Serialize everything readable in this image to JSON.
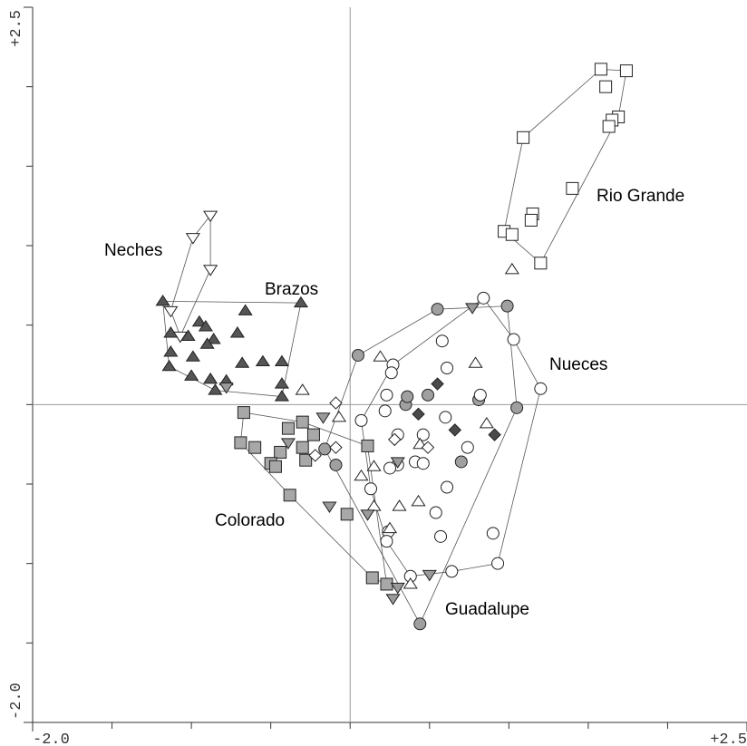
{
  "chart_data": {
    "type": "scatter",
    "xlim": [
      -2.0,
      2.5
    ],
    "ylim": [
      -2.0,
      2.5
    ],
    "xticks": [
      {
        "value": -2.0,
        "label": "-2.0"
      },
      {
        "value": 2.5,
        "label": "+2.5"
      }
    ],
    "yticks": [
      {
        "value": -2.0,
        "label": "-2.0"
      },
      {
        "value": 2.5,
        "label": "+2.5"
      }
    ],
    "xminorticks": [
      -1.5,
      -1.0,
      -0.5,
      0,
      0.5,
      1.0,
      1.5,
      2.0
    ],
    "yminorticks": [
      -1.5,
      -1.0,
      -0.5,
      0,
      0.5,
      1.0,
      1.5,
      2.0
    ],
    "zero_lines": true,
    "series": [
      {
        "name": "Rio Grande",
        "marker": "square",
        "color": "#ffffff",
        "hull": true,
        "x": [
          1.58,
          1.74,
          1.61,
          1.69,
          1.65,
          1.63,
          1.09,
          1.4,
          1.15,
          1.14,
          0.97,
          1.02,
          1.2
        ],
        "values": [
          2.11,
          2.1,
          2.0,
          1.81,
          1.79,
          1.75,
          1.68,
          1.36,
          1.2,
          1.16,
          1.09,
          1.07,
          0.89
        ]
      },
      {
        "name": "Neches",
        "marker": "triangle-down",
        "color": "#ffffff",
        "hull": true,
        "x": [
          -0.88,
          -0.99,
          -0.88,
          -1.13,
          -1.07
        ],
        "values": [
          1.19,
          1.05,
          0.85,
          0.59,
          0.43
        ]
      },
      {
        "name": "Brazos",
        "marker": "triangle-up",
        "color": "#555555",
        "hull": true,
        "x": [
          -1.18,
          -0.31,
          -1.13,
          -0.95,
          -0.91,
          -1.02,
          -0.86,
          -0.9,
          -0.66,
          -0.71,
          -1.13,
          -0.99,
          -1.14,
          -0.55,
          -0.43,
          -0.68,
          -0.88,
          -0.78,
          -1.0,
          -0.85,
          -0.43,
          -0.43
        ],
        "values": [
          0.65,
          0.64,
          0.45,
          0.52,
          0.49,
          0.43,
          0.41,
          0.38,
          0.59,
          0.45,
          0.33,
          0.3,
          0.24,
          0.27,
          0.27,
          0.26,
          0.16,
          0.15,
          0.18,
          0.09,
          0.13,
          0.05
        ]
      },
      {
        "name": "Colorado",
        "marker": "square",
        "color": "#a8a8a8",
        "hull": true,
        "x": [
          -0.67,
          -0.39,
          -0.3,
          -0.23,
          -0.69,
          -0.6,
          -0.44,
          -0.3,
          -0.5,
          -0.47,
          -0.28,
          -0.38,
          -0.02,
          0.11,
          0.14,
          0.23
        ],
        "values": [
          -0.05,
          -0.15,
          -0.11,
          -0.19,
          -0.24,
          -0.27,
          -0.3,
          -0.27,
          -0.37,
          -0.39,
          -0.35,
          -0.57,
          -0.69,
          -0.26,
          -1.09,
          -1.13
        ]
      },
      {
        "name": "Guadalupe",
        "marker": "circle",
        "color": "#a0a0a0",
        "hull": true,
        "x": [
          0.55,
          0.99,
          0.05,
          0.35,
          0.36,
          0.49,
          0.81,
          1.05,
          -0.16,
          -0.09,
          0.7,
          0.44
        ],
        "values": [
          0.6,
          0.62,
          0.31,
          0.0,
          0.05,
          0.06,
          0.03,
          -0.02,
          -0.28,
          -0.38,
          -0.36,
          -1.38
        ]
      },
      {
        "name": "Nueces",
        "marker": "circle",
        "color": "#ffffff",
        "hull": true,
        "x": [
          0.84,
          0.58,
          1.03,
          0.27,
          0.61,
          0.26,
          0.23,
          0.82,
          1.2,
          0.07,
          0.22,
          0.6,
          0.74,
          0.3,
          0.46,
          0.3,
          0.25,
          0.41,
          0.46,
          0.61,
          0.24,
          0.23,
          0.54,
          0.57,
          0.9,
          0.93,
          0.64,
          0.38,
          0.13
        ],
        "values": [
          0.67,
          0.4,
          0.41,
          0.25,
          0.23,
          0.2,
          0.06,
          0.06,
          0.1,
          -0.1,
          -0.04,
          -0.08,
          -0.27,
          -0.19,
          -0.19,
          -0.38,
          -0.4,
          -0.36,
          -0.37,
          -0.52,
          -0.8,
          -0.86,
          -0.68,
          -0.83,
          -0.81,
          -1.0,
          -1.05,
          -1.08,
          -0.53
        ]
      },
      {
        "marker": "triangle-up",
        "color": "#ffffff",
        "hull": false,
        "x": [
          1.02,
          -0.3,
          0.19,
          0.79,
          0.86,
          0.44,
          0.15,
          0.07,
          0.15,
          0.31,
          0.43,
          0.25,
          0.38,
          -0.07
        ],
        "values": [
          0.85,
          0.09,
          0.3,
          0.26,
          -0.12,
          -0.25,
          -0.39,
          -0.45,
          -0.64,
          -0.64,
          -0.61,
          -0.78,
          -1.13,
          -0.08
        ]
      },
      {
        "marker": "triangle-down",
        "color": "#9a9a9a",
        "hull": false,
        "x": [
          0.77,
          -0.78,
          -0.17,
          -0.39,
          -0.13,
          0.11,
          0.27,
          0.5,
          0.3,
          0.3
        ],
        "values": [
          0.61,
          0.11,
          -0.08,
          -0.24,
          -0.64,
          -0.69,
          -1.22,
          -1.07,
          -0.36,
          -1.15
        ]
      },
      {
        "marker": "diamond",
        "color": "#ffffff",
        "hull": false,
        "x": [
          -0.09,
          -0.09,
          -0.22,
          0.28,
          0.49
        ],
        "values": [
          0.01,
          -0.27,
          -0.32,
          -0.22,
          -0.27
        ]
      },
      {
        "marker": "diamond",
        "color": "#4a4a4a",
        "hull": false,
        "x": [
          0.43,
          0.55,
          0.66,
          0.91
        ],
        "values": [
          -0.06,
          0.13,
          -0.16,
          -0.19
        ]
      }
    ]
  }
}
